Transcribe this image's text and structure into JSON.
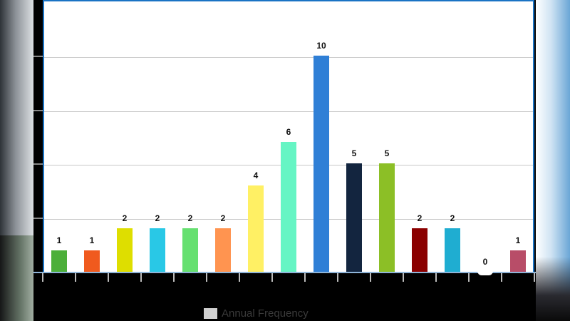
{
  "chart_data": {
    "type": "bar",
    "title": "",
    "xlabel": "",
    "ylabel": "",
    "categories": [
      "",
      "",
      "",
      "",
      "",
      "",
      "",
      "",
      "",
      "",
      "",
      "",
      "",
      "",
      ""
    ],
    "values": [
      1,
      1,
      2,
      2,
      2,
      2,
      4,
      6,
      10,
      5,
      5,
      2,
      2,
      0,
      1
    ],
    "colors": [
      "#4caf3a",
      "#f05a1e",
      "#dede00",
      "#29c8e6",
      "#66e070",
      "#ff9450",
      "#fff064",
      "#66f5c4",
      "#2f7fd6",
      "#13253f",
      "#8cbf26",
      "#8b0000",
      "#1fadd1",
      "#cccccc",
      "#b84d68"
    ],
    "series": [
      {
        "name": "Annual Frequency",
        "values": [
          1,
          1,
          2,
          2,
          2,
          2,
          4,
          6,
          10,
          5,
          5,
          2,
          2,
          0,
          1
        ]
      }
    ],
    "ylim": [
      0,
      12.5
    ],
    "gridlines": [
      2.5,
      5,
      7.5,
      10
    ],
    "grid": true,
    "data_labels": true,
    "legend": {
      "position": "bottom",
      "entries": [
        "Annual Frequency"
      ]
    }
  },
  "legend": {
    "label": "Annual Frequency"
  }
}
